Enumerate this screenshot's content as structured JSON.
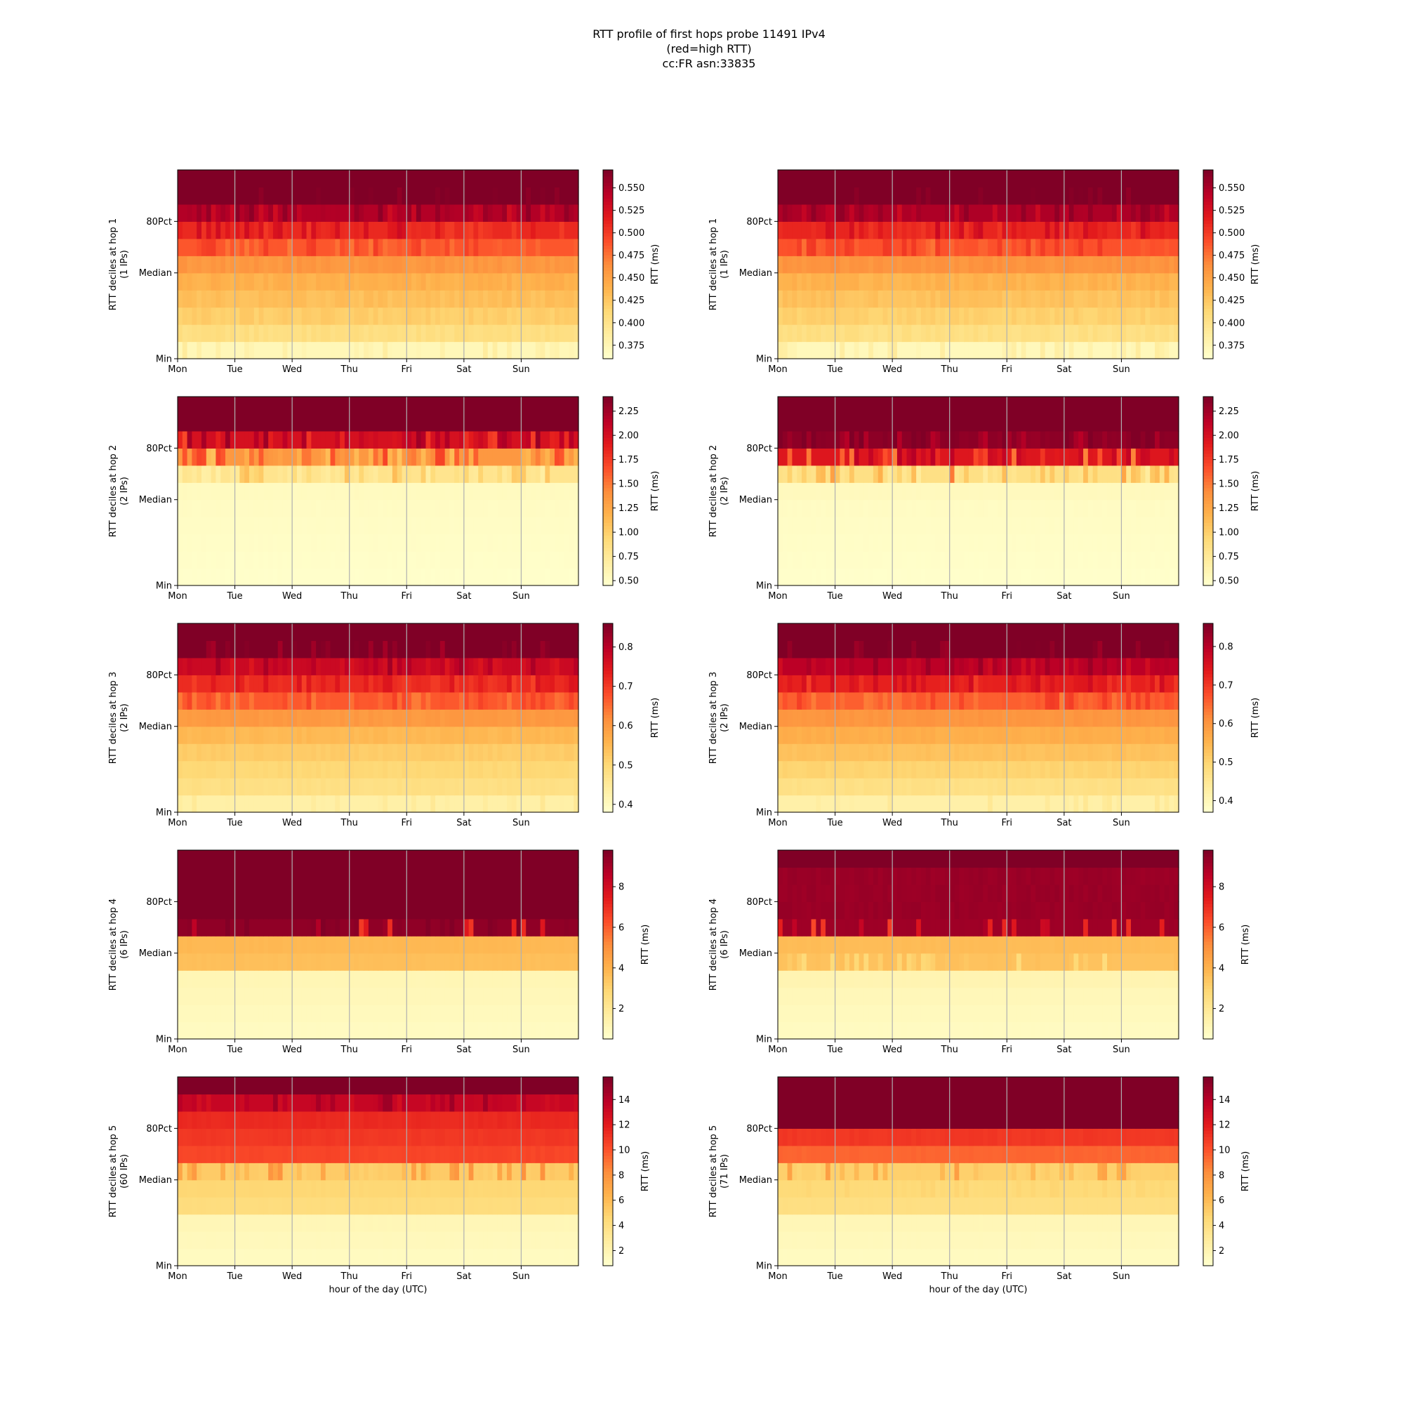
{
  "figure": {
    "title_lines": [
      "RTT profile of first hops probe 11491 IPv4",
      "(red=high RTT)",
      "cc:FR asn:33835"
    ]
  },
  "chart_data": [
    {
      "type": "heatmap",
      "column": "left",
      "hop": 1,
      "ylabel_lines": [
        "RTT deciles at hop 1",
        "(1 IPs)"
      ],
      "yticks": [
        "Min",
        "Median",
        "80Pct"
      ],
      "xticks": [
        "Mon",
        "Tue",
        "Wed",
        "Thu",
        "Fri",
        "Sat",
        "Sun"
      ],
      "xlabel": "",
      "colorbar": {
        "label": "RTT (ms)",
        "range": [
          0.36,
          0.57
        ],
        "ticks": [
          "0.375",
          "0.400",
          "0.425",
          "0.450",
          "0.475",
          "0.500",
          "0.525",
          "0.550"
        ]
      },
      "decile_rtt_ms": [
        0.372,
        0.405,
        0.42,
        0.43,
        0.44,
        0.458,
        0.488,
        0.51,
        0.548,
        0.575,
        0.58
      ],
      "stripe_rows": [
        0,
        6,
        7,
        8,
        9
      ]
    },
    {
      "type": "heatmap",
      "column": "right",
      "hop": 1,
      "ylabel_lines": [
        "RTT deciles at hop 1",
        "(1 IPs)"
      ],
      "yticks": [
        "Min",
        "Median",
        "80Pct"
      ],
      "xticks": [
        "Mon",
        "Tue",
        "Wed",
        "Thu",
        "Fri",
        "Sat",
        "Sun"
      ],
      "xlabel": "",
      "colorbar": {
        "label": "RTT (ms)",
        "range": [
          0.36,
          0.57
        ],
        "ticks": [
          "0.375",
          "0.400",
          "0.425",
          "0.450",
          "0.475",
          "0.500",
          "0.525",
          "0.550"
        ]
      },
      "decile_rtt_ms": [
        0.37,
        0.404,
        0.418,
        0.428,
        0.438,
        0.46,
        0.49,
        0.512,
        0.55,
        0.575,
        0.58
      ],
      "stripe_rows": [
        0,
        6,
        7,
        8,
        9
      ]
    },
    {
      "type": "heatmap",
      "column": "left",
      "hop": 2,
      "ylabel_lines": [
        "RTT deciles at hop 2",
        "(2 IPs)"
      ],
      "yticks": [
        "Min",
        "Median",
        "80Pct"
      ],
      "xticks": [
        "Mon",
        "Tue",
        "Wed",
        "Thu",
        "Fri",
        "Sat",
        "Sun"
      ],
      "xlabel": "",
      "colorbar": {
        "label": "RTT (ms)",
        "range": [
          0.45,
          2.4
        ],
        "ticks": [
          "0.50",
          "0.75",
          "1.00",
          "1.25",
          "1.50",
          "1.75",
          "2.00",
          "2.25"
        ]
      },
      "decile_rtt_ms": [
        0.46,
        0.47,
        0.48,
        0.49,
        0.5,
        0.52,
        0.8,
        1.35,
        2.0,
        2.5,
        2.6
      ],
      "stripe_rows": [
        6,
        7,
        8
      ]
    },
    {
      "type": "heatmap",
      "column": "right",
      "hop": 2,
      "ylabel_lines": [
        "RTT deciles at hop 2",
        "(2 IPs)"
      ],
      "yticks": [
        "Min",
        "Median",
        "80Pct"
      ],
      "xticks": [
        "Mon",
        "Tue",
        "Wed",
        "Thu",
        "Fri",
        "Sat",
        "Sun"
      ],
      "xlabel": "",
      "colorbar": {
        "label": "RTT (ms)",
        "range": [
          0.45,
          2.4
        ],
        "ticks": [
          "0.50",
          "0.75",
          "1.00",
          "1.25",
          "1.50",
          "1.75",
          "2.00",
          "2.25"
        ]
      },
      "decile_rtt_ms": [
        0.46,
        0.47,
        0.48,
        0.49,
        0.5,
        0.53,
        0.85,
        1.95,
        2.35,
        2.5,
        2.6
      ],
      "stripe_rows": [
        6,
        7,
        8
      ]
    },
    {
      "type": "heatmap",
      "column": "left",
      "hop": 3,
      "ylabel_lines": [
        "RTT deciles at hop 3",
        "(2 IPs)"
      ],
      "yticks": [
        "Min",
        "Median",
        "80Pct"
      ],
      "xticks": [
        "Mon",
        "Tue",
        "Wed",
        "Thu",
        "Fri",
        "Sat",
        "Sun"
      ],
      "xlabel": "",
      "colorbar": {
        "label": "RTT (ms)",
        "range": [
          0.38,
          0.86
        ],
        "ticks": [
          "0.4",
          "0.5",
          "0.6",
          "0.7",
          "0.8"
        ]
      },
      "decile_rtt_ms": [
        0.43,
        0.48,
        0.5,
        0.52,
        0.55,
        0.6,
        0.67,
        0.72,
        0.78,
        0.86,
        0.9
      ],
      "stripe_rows": [
        0,
        6,
        7,
        8,
        9
      ]
    },
    {
      "type": "heatmap",
      "column": "right",
      "hop": 3,
      "ylabel_lines": [
        "RTT deciles at hop 3",
        "(2 IPs)"
      ],
      "yticks": [
        "Min",
        "Median",
        "80Pct"
      ],
      "xticks": [
        "Mon",
        "Tue",
        "Wed",
        "Thu",
        "Fri",
        "Sat",
        "Sun"
      ],
      "xlabel": "",
      "colorbar": {
        "label": "RTT (ms)",
        "range": [
          0.37,
          0.86
        ],
        "ticks": [
          "0.4",
          "0.5",
          "0.6",
          "0.7",
          "0.8"
        ]
      },
      "decile_rtt_ms": [
        0.42,
        0.47,
        0.5,
        0.53,
        0.56,
        0.6,
        0.66,
        0.73,
        0.8,
        0.86,
        0.9
      ],
      "stripe_rows": [
        0,
        6,
        7,
        8,
        9
      ]
    },
    {
      "type": "heatmap",
      "column": "left",
      "hop": 4,
      "ylabel_lines": [
        "RTT deciles at hop 4",
        "(6 IPs)"
      ],
      "yticks": [
        "Min",
        "Median",
        "80Pct"
      ],
      "xticks": [
        "Mon",
        "Tue",
        "Wed",
        "Thu",
        "Fri",
        "Sat",
        "Sun"
      ],
      "xlabel": "",
      "colorbar": {
        "label": "RTT (ms)",
        "range": [
          0.5,
          9.8
        ],
        "ticks": [
          "2",
          "4",
          "6",
          "8"
        ]
      },
      "decile_rtt_ms": [
        0.8,
        0.9,
        1.0,
        1.1,
        3.6,
        3.8,
        9.5,
        10.0,
        10.0,
        10.0,
        10.0
      ],
      "stripe_rows": [
        6
      ]
    },
    {
      "type": "heatmap",
      "column": "right",
      "hop": 4,
      "ylabel_lines": [
        "RTT deciles at hop 4",
        "(6 IPs)"
      ],
      "yticks": [
        "Min",
        "Median",
        "80Pct"
      ],
      "xticks": [
        "Mon",
        "Tue",
        "Wed",
        "Thu",
        "Fri",
        "Sat",
        "Sun"
      ],
      "xlabel": "",
      "colorbar": {
        "label": "RTT (ms)",
        "range": [
          0.5,
          9.8
        ],
        "ticks": [
          "2",
          "4",
          "6",
          "8"
        ]
      },
      "decile_rtt_ms": [
        0.8,
        0.9,
        1.0,
        1.2,
        3.5,
        3.7,
        9.2,
        9.3,
        9.3,
        9.3,
        10.0
      ],
      "stripe_rows": [
        4,
        6
      ]
    },
    {
      "type": "heatmap",
      "column": "left",
      "hop": 5,
      "ylabel_lines": [
        "RTT deciles at hop 5",
        "(60 IPs)"
      ],
      "yticks": [
        "Min",
        "Median",
        "80Pct"
      ],
      "xticks": [
        "Mon",
        "Tue",
        "Wed",
        "Thu",
        "Fri",
        "Sat",
        "Sun"
      ],
      "xlabel": "hour of the day (UTC)",
      "colorbar": {
        "label": "RTT (ms)",
        "range": [
          0.8,
          15.8
        ],
        "ticks": [
          "2",
          "4",
          "6",
          "8",
          "10",
          "12",
          "14"
        ]
      },
      "decile_rtt_ms": [
        1.3,
        1.5,
        1.7,
        4.2,
        4.6,
        5.2,
        10.5,
        11.0,
        11.5,
        13.5,
        16.0
      ],
      "stripe_rows": [
        5,
        9
      ]
    },
    {
      "type": "heatmap",
      "column": "right",
      "hop": 5,
      "ylabel_lines": [
        "RTT deciles at hop 5",
        "(71 IPs)"
      ],
      "yticks": [
        "Min",
        "Median",
        "80Pct"
      ],
      "xticks": [
        "Mon",
        "Tue",
        "Wed",
        "Thu",
        "Fri",
        "Sat",
        "Sun"
      ],
      "xlabel": "hour of the day (UTC)",
      "colorbar": {
        "label": "RTT (ms)",
        "range": [
          0.8,
          15.8
        ],
        "ticks": [
          "2",
          "4",
          "6",
          "8",
          "10",
          "12",
          "14"
        ]
      },
      "decile_rtt_ms": [
        1.3,
        1.5,
        1.7,
        4.0,
        4.4,
        5.0,
        9.5,
        11.0,
        16.0,
        16.0,
        16.0
      ],
      "stripe_rows": [
        4,
        5
      ]
    }
  ]
}
